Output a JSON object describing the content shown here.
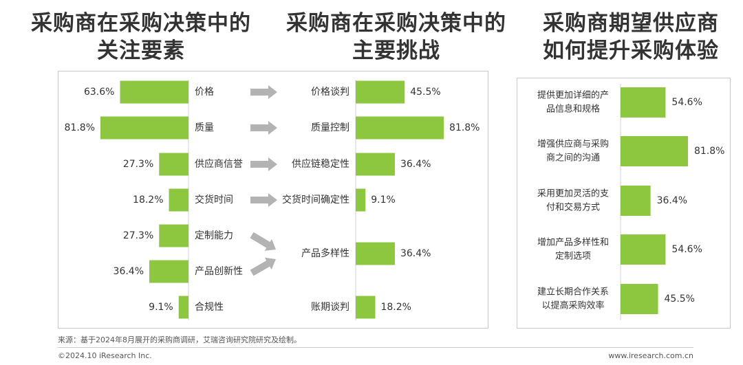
{
  "titles": {
    "left": [
      "采购商在采购决策中的",
      "关注要素"
    ],
    "middle": [
      "采购商在采购决策中的",
      "主要挑战"
    ],
    "right": [
      "采购商期望供应商",
      "如何提升采购体验"
    ]
  },
  "colors": {
    "bar": "#8dc63f",
    "bar_dark": "#5cb531",
    "arrow": "#b3b3b3"
  },
  "chart_data": [
    {
      "type": "bar",
      "orientation": "horizontal",
      "categories": [
        "价格",
        "质量",
        "供应商信誉",
        "交货时间",
        "定制能力",
        "产品创新性",
        "合规性"
      ],
      "values": [
        63.6,
        81.8,
        27.3,
        18.2,
        27.3,
        36.4,
        9.1
      ],
      "value_labels": [
        "63.6%",
        "81.8%",
        "27.3%",
        "18.2%",
        "27.3%",
        "36.4%",
        "9.1%"
      ]
    },
    {
      "type": "bar",
      "orientation": "horizontal",
      "categories": [
        "价格谈判",
        "质量控制",
        "供应链稳定性",
        "交货时间确定性",
        "产品多样性",
        "账期谈判"
      ],
      "values": [
        45.5,
        81.8,
        36.4,
        9.1,
        36.4,
        18.2
      ],
      "value_labels": [
        "45.5%",
        "81.8%",
        "36.4%",
        "9.1%",
        "36.4%",
        "18.2%"
      ]
    },
    {
      "type": "bar",
      "orientation": "horizontal",
      "categories": [
        [
          "提供更加详细的产",
          "品信息和规格"
        ],
        [
          "增强供应商与采购",
          "商之间的沟通"
        ],
        [
          "采用更加灵活的支",
          "付和交易方式"
        ],
        [
          "增加产品多样性和",
          "定制选项"
        ],
        [
          "建立长期合作关系",
          "以提高采购效率"
        ]
      ],
      "values": [
        54.6,
        81.8,
        36.4,
        54.6,
        45.5
      ],
      "value_labels": [
        "54.6%",
        "81.8%",
        "36.4%",
        "54.6%",
        "45.5%"
      ]
    }
  ],
  "source": "来源：基于2024年8月展开的采购商调研，艾瑞咨询研究院研究及绘制。",
  "footer": {
    "left": "©2024.10 iResearch Inc.",
    "right": "www.iresearch.com.cn"
  }
}
